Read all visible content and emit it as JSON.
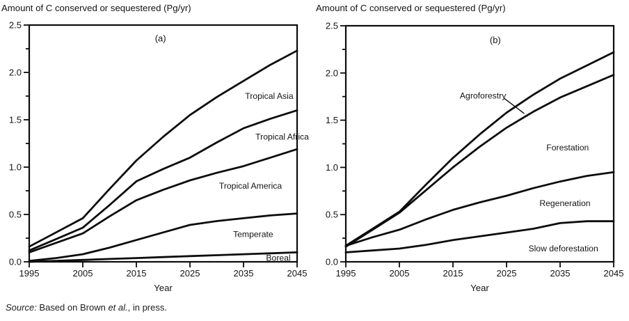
{
  "source_note": {
    "prefix": "Source:",
    "body": " Based on Brown ",
    "etal": "et al.",
    "suffix": ", in press."
  },
  "chart_data": [
    {
      "type": "line",
      "panel_label": "(a)",
      "title": "Amount of C conserved or sequestered (Pg/yr)",
      "xlabel": "Year",
      "ylabel": "",
      "grid": false,
      "legend_position": "inline-labels",
      "xlim": [
        1995,
        2045
      ],
      "ylim": [
        0,
        2.5
      ],
      "x": [
        1995,
        2000,
        2005,
        2010,
        2015,
        2020,
        2025,
        2030,
        2035,
        2040,
        2045
      ],
      "xticks": [
        1995,
        2005,
        2015,
        2025,
        2035,
        2045
      ],
      "yticks": [
        0,
        0.5,
        1,
        1.5,
        2,
        2.5
      ],
      "ytick_labels": [
        "0.0",
        "0.5",
        "1.0",
        "1.5",
        "2.0",
        "2.5"
      ],
      "y_minor_tick_step": 0.25,
      "panel_label_pos": {
        "year": 2019.5,
        "value": 2.36
      },
      "series": [
        {
          "name": "Tropical Asia",
          "values": [
            0.16,
            0.31,
            0.46,
            0.77,
            1.07,
            1.32,
            1.55,
            1.74,
            1.91,
            2.08,
            2.23
          ],
          "label": {
            "year": 2044.3,
            "value": 1.75,
            "anchor": "end"
          }
        },
        {
          "name": "Tropical Africa",
          "values": [
            0.12,
            0.24,
            0.36,
            0.6,
            0.85,
            0.98,
            1.1,
            1.26,
            1.41,
            1.51,
            1.6
          ],
          "label": {
            "year": 2047.2,
            "value": 1.32,
            "anchor": "end"
          }
        },
        {
          "name": "Tropical America",
          "values": [
            0.1,
            0.2,
            0.3,
            0.48,
            0.65,
            0.76,
            0.86,
            0.94,
            1.01,
            1.1,
            1.19
          ],
          "label": {
            "year": 2036.3,
            "value": 0.8,
            "anchor": "middle"
          }
        },
        {
          "name": "Temperate",
          "values": [
            0.01,
            0.04,
            0.08,
            0.15,
            0.23,
            0.31,
            0.39,
            0.43,
            0.46,
            0.49,
            0.51
          ],
          "label": {
            "year": 2036.8,
            "value": 0.29,
            "anchor": "middle"
          }
        },
        {
          "name": "Boreal",
          "values": [
            0.0,
            0.01,
            0.02,
            0.03,
            0.04,
            0.05,
            0.06,
            0.07,
            0.08,
            0.09,
            0.1
          ],
          "label": {
            "year": 2041.5,
            "value": 0.04,
            "anchor": "middle"
          }
        }
      ]
    },
    {
      "type": "line",
      "panel_label": "(b)",
      "title": "Amount of C conserved or sequestered (Pg/yr)",
      "xlabel": "Year",
      "ylabel": "",
      "grid": false,
      "legend_position": "inline-labels",
      "xlim": [
        1995,
        2045
      ],
      "ylim": [
        0,
        2.5
      ],
      "x": [
        1995,
        2000,
        2005,
        2010,
        2015,
        2020,
        2025,
        2030,
        2035,
        2040,
        2045
      ],
      "xticks": [
        1995,
        2005,
        2015,
        2025,
        2035,
        2045
      ],
      "yticks": [
        0,
        0.5,
        1,
        1.5,
        2,
        2.5
      ],
      "ytick_labels": [
        "0.0",
        "0.5",
        "1.0",
        "1.5",
        "2.0",
        "2.5"
      ],
      "y_minor_tick_step": 0.25,
      "panel_label_pos": {
        "year": 2022.9,
        "value": 2.35
      },
      "annotation_line": {
        "from": {
          "year": 2024.6,
          "value": 1.73
        },
        "to": {
          "year": 2028.3,
          "value": 1.57
        }
      },
      "series": [
        {
          "name": "Agroforestry",
          "values": [
            0.17,
            0.35,
            0.53,
            0.82,
            1.1,
            1.35,
            1.58,
            1.77,
            1.94,
            2.08,
            2.22
          ],
          "label": {
            "year": 2020.6,
            "value": 1.76,
            "anchor": "middle"
          }
        },
        {
          "name": "Forestation",
          "values": [
            0.16,
            0.34,
            0.52,
            0.76,
            1.0,
            1.22,
            1.42,
            1.59,
            1.74,
            1.86,
            1.98
          ],
          "label": {
            "year": 2036.4,
            "value": 1.21,
            "anchor": "middle"
          }
        },
        {
          "name": "Regeneration",
          "values": [
            0.17,
            0.26,
            0.34,
            0.45,
            0.55,
            0.63,
            0.7,
            0.78,
            0.85,
            0.91,
            0.95
          ],
          "label": {
            "year": 2035.9,
            "value": 0.62,
            "anchor": "middle"
          }
        },
        {
          "name": "Slow deforestation",
          "values": [
            0.1,
            0.12,
            0.14,
            0.18,
            0.23,
            0.27,
            0.31,
            0.35,
            0.41,
            0.43,
            0.43
          ],
          "label": {
            "year": 2035.6,
            "value": 0.14,
            "anchor": "middle"
          }
        }
      ]
    }
  ]
}
